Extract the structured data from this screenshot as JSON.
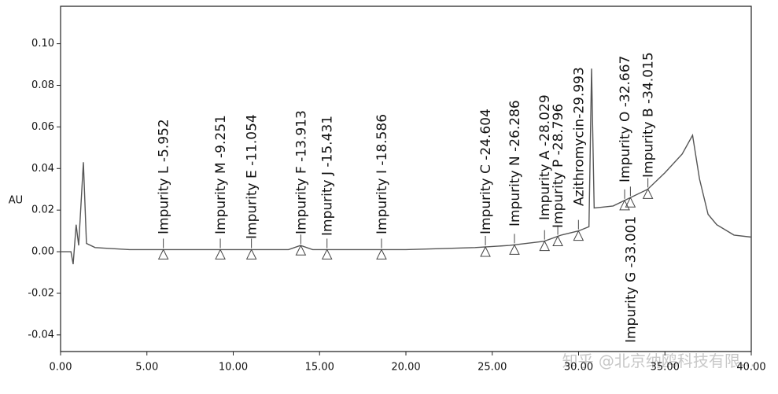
{
  "chart_data": {
    "type": "line",
    "ylabel": "AU",
    "x": [
      0,
      0.6,
      0.73,
      0.9,
      1.05,
      1.32,
      1.5,
      2,
      4,
      8,
      12,
      13.2,
      13.9,
      14.6,
      16,
      20,
      24,
      26,
      28,
      29,
      30,
      30.6,
      30.75,
      30.9,
      32,
      34,
      35,
      36,
      36.6,
      37,
      37.5,
      38,
      39,
      40
    ],
    "values": [
      0,
      0,
      -0.006,
      0.013,
      0.003,
      0.043,
      0.004,
      0.002,
      0.001,
      0.001,
      0.001,
      0.001,
      0.003,
      0.001,
      0.001,
      0.001,
      0.002,
      0.003,
      0.005,
      0.008,
      0.01,
      0.012,
      0.088,
      0.021,
      0.022,
      0.03,
      0.038,
      0.047,
      0.056,
      0.035,
      0.018,
      0.013,
      0.008,
      0.007
    ],
    "color": "#555555",
    "xlim": [
      0,
      40
    ],
    "ylim": [
      -0.048,
      0.118
    ],
    "xticks": [
      {
        "value": 0,
        "label": "0.00"
      },
      {
        "value": 5,
        "label": "5.00"
      },
      {
        "value": 10,
        "label": "10.00"
      },
      {
        "value": 15,
        "label": "15.00"
      },
      {
        "value": 20,
        "label": "20.00"
      },
      {
        "value": 25,
        "label": "25.00"
      },
      {
        "value": 30,
        "label": "30.00"
      },
      {
        "value": 35,
        "label": "35.00"
      },
      {
        "value": 40,
        "label": "40.00"
      }
    ],
    "yticks": [
      {
        "value": -0.04,
        "label": "-0.04"
      },
      {
        "value": -0.02,
        "label": "-0.02"
      },
      {
        "value": 0,
        "label": "0.00"
      },
      {
        "value": 0.02,
        "label": "0.02"
      },
      {
        "value": 0.04,
        "label": "0.04"
      },
      {
        "value": 0.06,
        "label": "0.06"
      },
      {
        "value": 0.08,
        "label": "0.08"
      },
      {
        "value": 0.1,
        "label": "0.10"
      }
    ],
    "annotations": [
      {
        "text": "Impurity L -5.952",
        "x": 5.952
      },
      {
        "text": "Impurity M -9.251",
        "x": 9.251
      },
      {
        "text": "Impurity E -11.054",
        "x": 11.054
      },
      {
        "text": "Impurity F -13.913",
        "x": 13.913
      },
      {
        "text": "Impurity J -15.431",
        "x": 15.431
      },
      {
        "text": "Impurity I -18.586",
        "x": 18.586
      },
      {
        "text": "Impurity C -24.604",
        "x": 24.604
      },
      {
        "text": "Impurity N -26.286",
        "x": 26.286
      },
      {
        "text": "Impurity A -28.029",
        "x": 28.029
      },
      {
        "text": "Impurity P -28.796",
        "x": 28.796
      },
      {
        "text": "Azithromycin-29.993",
        "x": 29.993
      },
      {
        "text": "Impurity O -32.667",
        "x": 32.667
      },
      {
        "text": "Impurity G -33.001",
        "x": 33.001
      },
      {
        "text": "Impurity B -34.015",
        "x": 34.015
      }
    ],
    "watermark": "知乎 @北京纳鸥科技有限..."
  }
}
